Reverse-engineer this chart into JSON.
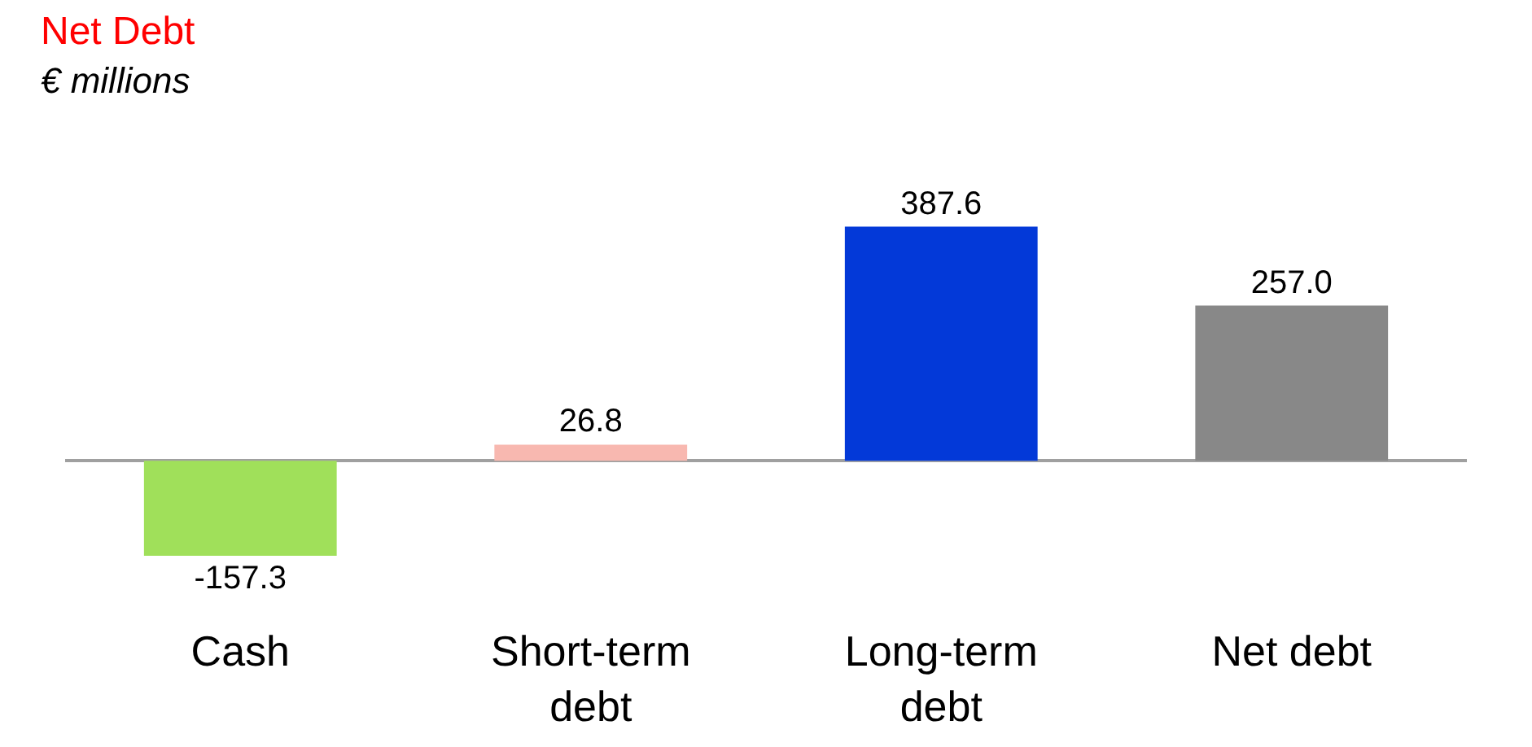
{
  "chart_data": {
    "type": "bar",
    "title": "Net Debt",
    "subtitle": "€ millions",
    "categories": [
      "Cash",
      "Short-term debt",
      "Long-term debt",
      "Net debt"
    ],
    "values": [
      -157.3,
      26.8,
      387.6,
      257.0
    ],
    "colors": [
      "#a0e05a",
      "#f8b8b0",
      "#0339d8",
      "#888888"
    ],
    "data_labels": true,
    "value_labels": [
      "-157.3",
      "26.8",
      "387.6",
      "257.0"
    ]
  }
}
